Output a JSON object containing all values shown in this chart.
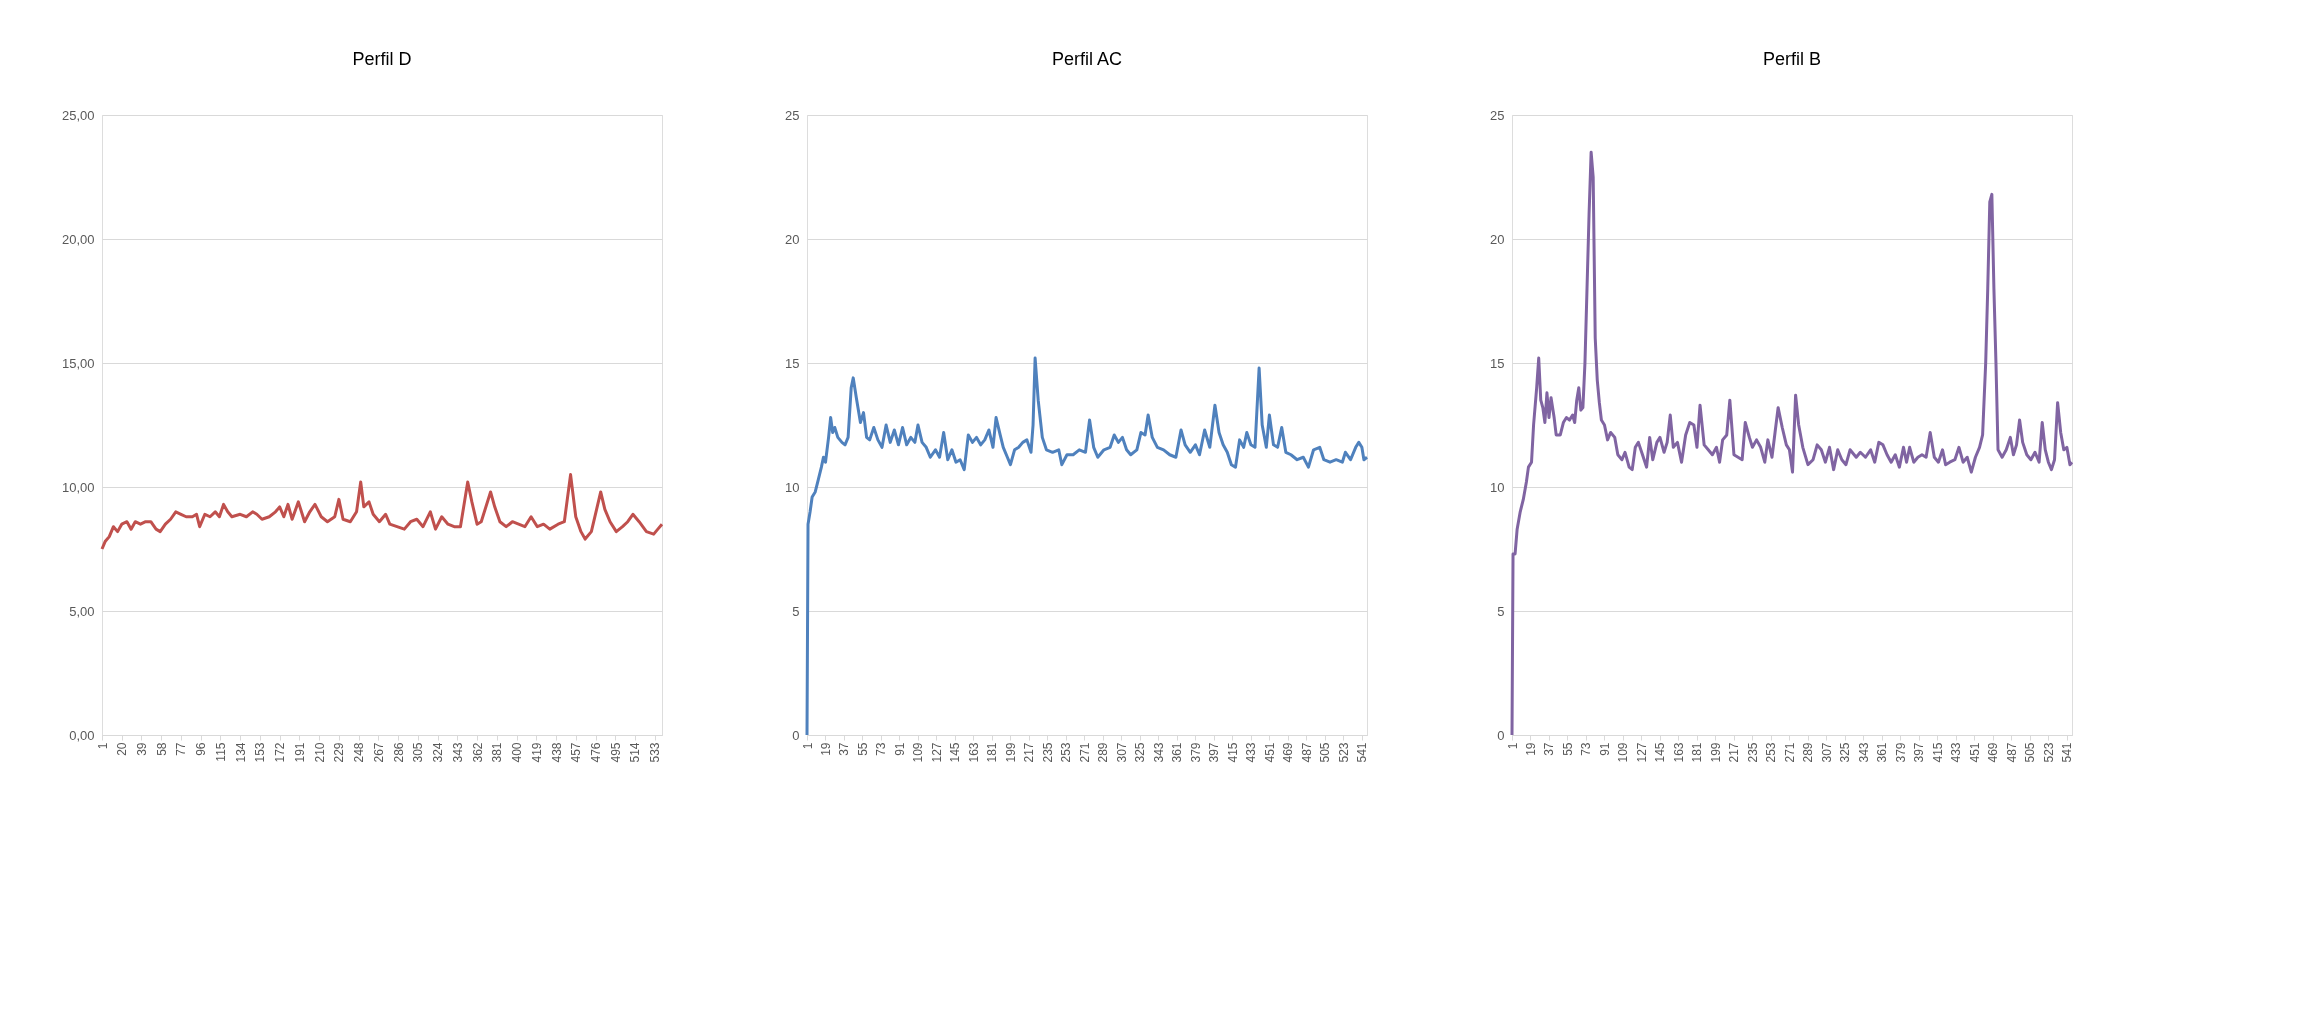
{
  "chart_data": [
    {
      "type": "line",
      "title": "Perfil D",
      "grid": "y",
      "marker": "none",
      "line_style": "solid",
      "xlim": [
        1,
        540
      ],
      "xticks": [
        1,
        20,
        39,
        58,
        77,
        96,
        115,
        134,
        153,
        172,
        191,
        210,
        229,
        248,
        267,
        286,
        305,
        324,
        343,
        362,
        381,
        400,
        419,
        438,
        457,
        476,
        495,
        514,
        533
      ],
      "ylim": [
        0,
        25
      ],
      "yticks": [
        {
          "value": 0,
          "label": "0,00"
        },
        {
          "value": 5,
          "label": "5,00"
        },
        {
          "value": 10,
          "label": "10,00"
        },
        {
          "value": 15,
          "label": "15,00"
        },
        {
          "value": 20,
          "label": "20,00"
        },
        {
          "value": 25,
          "label": "25,00"
        }
      ],
      "series": [
        {
          "color": "#c0504d",
          "x": [
            1,
            4,
            8,
            12,
            16,
            20,
            25,
            29,
            33,
            38,
            43,
            48,
            53,
            57,
            62,
            67,
            72,
            77,
            82,
            88,
            92,
            95,
            100,
            105,
            110,
            114,
            118,
            122,
            126,
            134,
            140,
            146,
            150,
            155,
            162,
            168,
            172,
            176,
            180,
            184,
            190,
            196,
            201,
            206,
            212,
            218,
            225,
            229,
            233,
            240,
            246,
            250,
            253,
            258,
            262,
            268,
            274,
            278,
            285,
            292,
            298,
            304,
            310,
            317,
            322,
            328,
            334,
            340,
            346,
            353,
            357,
            362,
            366,
            375,
            379,
            384,
            390,
            396,
            402,
            408,
            414,
            420,
            426,
            432,
            440,
            446,
            452,
            457,
            462,
            466,
            472,
            481,
            485,
            490,
            496,
            502,
            507,
            512,
            518,
            525,
            532,
            536,
            540
          ],
          "values": [
            7.5,
            7.8,
            8.0,
            8.4,
            8.2,
            8.5,
            8.6,
            8.3,
            8.6,
            8.5,
            8.6,
            8.6,
            8.3,
            8.2,
            8.5,
            8.7,
            9.0,
            8.9,
            8.8,
            8.8,
            8.9,
            8.4,
            8.9,
            8.8,
            9.0,
            8.8,
            9.3,
            9.0,
            8.8,
            8.9,
            8.8,
            9.0,
            8.9,
            8.7,
            8.8,
            9.0,
            9.2,
            8.8,
            9.3,
            8.7,
            9.4,
            8.6,
            9.0,
            9.3,
            8.8,
            8.6,
            8.8,
            9.5,
            8.7,
            8.6,
            9.0,
            10.2,
            9.2,
            9.4,
            8.9,
            8.6,
            8.9,
            8.5,
            8.4,
            8.3,
            8.6,
            8.7,
            8.4,
            9.0,
            8.3,
            8.8,
            8.5,
            8.4,
            8.4,
            10.2,
            9.4,
            8.5,
            8.6,
            9.8,
            9.2,
            8.6,
            8.4,
            8.6,
            8.5,
            8.4,
            8.8,
            8.4,
            8.5,
            8.3,
            8.5,
            8.6,
            10.5,
            8.8,
            8.2,
            7.9,
            8.2,
            9.8,
            9.1,
            8.6,
            8.2,
            8.4,
            8.6,
            8.9,
            8.6,
            8.2,
            8.1,
            8.3,
            8.5
          ]
        }
      ]
    },
    {
      "type": "line",
      "title": "Perfil AC",
      "grid": "y",
      "marker": "none",
      "line_style": "solid",
      "xlim": [
        1,
        546
      ],
      "xticks": [
        1,
        19,
        37,
        55,
        73,
        91,
        109,
        127,
        145,
        163,
        181,
        199,
        217,
        235,
        253,
        271,
        289,
        307,
        325,
        343,
        361,
        379,
        397,
        415,
        433,
        451,
        469,
        487,
        505,
        523,
        541
      ],
      "ylim": [
        0,
        25
      ],
      "yticks": [
        0,
        5,
        10,
        15,
        20,
        25
      ],
      "series": [
        {
          "color": "#4f81bd",
          "x": [
            1,
            2,
            4,
            6,
            9,
            12,
            15,
            17,
            19,
            22,
            24,
            26,
            28,
            31,
            35,
            38,
            41,
            44,
            46,
            49,
            53,
            56,
            59,
            62,
            66,
            70,
            74,
            78,
            82,
            86,
            90,
            94,
            98,
            102,
            106,
            109,
            113,
            117,
            121,
            126,
            130,
            134,
            138,
            142,
            146,
            150,
            154,
            158,
            162,
            166,
            170,
            174,
            178,
            182,
            185,
            189,
            192,
            196,
            199,
            203,
            207,
            211,
            215,
            219,
            221,
            223,
            226,
            230,
            234,
            240,
            246,
            249,
            254,
            260,
            266,
            272,
            276,
            280,
            284,
            290,
            296,
            300,
            304,
            308,
            312,
            316,
            322,
            326,
            330,
            333,
            337,
            342,
            348,
            354,
            360,
            365,
            369,
            374,
            379,
            383,
            388,
            393,
            398,
            402,
            406,
            410,
            414,
            418,
            422,
            426,
            429,
            433,
            437,
            441,
            444,
            448,
            451,
            455,
            459,
            463,
            467,
            472,
            478,
            484,
            489,
            494,
            500,
            504,
            510,
            516,
            522,
            525,
            530,
            535,
            538,
            541,
            543,
            546
          ],
          "values": [
            0,
            8.5,
            9.0,
            9.6,
            9.8,
            10.3,
            10.8,
            11.2,
            11.0,
            12.0,
            12.8,
            12.2,
            12.4,
            12.0,
            11.8,
            11.7,
            12.0,
            14.0,
            14.4,
            13.6,
            12.6,
            13.0,
            12.0,
            11.9,
            12.4,
            11.9,
            11.6,
            12.5,
            11.8,
            12.3,
            11.7,
            12.4,
            11.7,
            12.0,
            11.8,
            12.5,
            11.8,
            11.6,
            11.2,
            11.5,
            11.2,
            12.2,
            11.1,
            11.5,
            11.0,
            11.1,
            10.7,
            12.1,
            11.8,
            12.0,
            11.7,
            11.9,
            12.3,
            11.6,
            12.8,
            12.1,
            11.6,
            11.2,
            10.9,
            11.5,
            11.6,
            11.8,
            11.9,
            11.4,
            12.5,
            15.2,
            13.5,
            12.0,
            11.5,
            11.4,
            11.5,
            10.9,
            11.3,
            11.3,
            11.5,
            11.4,
            12.7,
            11.6,
            11.2,
            11.5,
            11.6,
            12.1,
            11.8,
            12.0,
            11.5,
            11.3,
            11.5,
            12.2,
            12.1,
            12.9,
            12.0,
            11.6,
            11.5,
            11.3,
            11.2,
            12.3,
            11.7,
            11.4,
            11.7,
            11.3,
            12.3,
            11.6,
            13.3,
            12.2,
            11.7,
            11.4,
            10.9,
            10.8,
            11.9,
            11.6,
            12.2,
            11.7,
            11.6,
            14.8,
            12.5,
            11.6,
            12.9,
            11.7,
            11.6,
            12.4,
            11.4,
            11.3,
            11.1,
            11.2,
            10.8,
            11.5,
            11.6,
            11.1,
            11.0,
            11.1,
            11.0,
            11.4,
            11.1,
            11.6,
            11.8,
            11.6,
            11.1,
            11.2
          ]
        }
      ]
    },
    {
      "type": "line",
      "title": "Perfil B",
      "grid": "y",
      "marker": "none",
      "line_style": "solid",
      "xlim": [
        1,
        546
      ],
      "xticks": [
        1,
        19,
        37,
        55,
        73,
        91,
        109,
        127,
        145,
        163,
        181,
        199,
        217,
        235,
        253,
        271,
        289,
        307,
        325,
        343,
        361,
        379,
        397,
        415,
        433,
        451,
        469,
        487,
        505,
        523,
        541
      ],
      "ylim": [
        0,
        25
      ],
      "yticks": [
        0,
        5,
        10,
        15,
        20,
        25
      ],
      "series": [
        {
          "color": "#8064a2",
          "x": [
            1,
            2,
            4,
            6,
            9,
            12,
            15,
            17,
            20,
            22,
            25,
            27,
            29,
            31,
            33,
            35,
            37,
            39,
            42,
            44,
            48,
            51,
            54,
            57,
            60,
            62,
            64,
            66,
            68,
            70,
            72,
            74,
            76,
            78,
            80,
            82,
            84,
            86,
            88,
            91,
            94,
            97,
            101,
            104,
            108,
            111,
            115,
            118,
            121,
            124,
            128,
            132,
            135,
            138,
            142,
            145,
            149,
            152,
            155,
            158,
            162,
            166,
            170,
            174,
            178,
            181,
            184,
            188,
            192,
            196,
            200,
            203,
            206,
            210,
            213,
            217,
            221,
            225,
            228,
            232,
            235,
            239,
            243,
            247,
            250,
            254,
            257,
            260,
            264,
            268,
            271,
            274,
            277,
            280,
            284,
            289,
            294,
            298,
            302,
            306,
            310,
            314,
            318,
            322,
            326,
            330,
            336,
            340,
            345,
            350,
            354,
            358,
            362,
            366,
            370,
            374,
            378,
            382,
            385,
            388,
            392,
            396,
            400,
            404,
            408,
            412,
            416,
            420,
            423,
            427,
            432,
            436,
            440,
            444,
            448,
            452,
            456,
            459,
            462,
            464,
            466,
            468,
            470,
            472,
            474,
            478,
            482,
            486,
            489,
            492,
            495,
            498,
            502,
            506,
            510,
            514,
            517,
            520,
            523,
            526,
            529,
            532,
            535,
            538,
            541,
            544,
            546
          ],
          "values": [
            0,
            7.3,
            7.3,
            8.3,
            9.0,
            9.5,
            10.2,
            10.8,
            11.0,
            12.5,
            14.0,
            15.2,
            13.5,
            13.2,
            12.6,
            13.8,
            12.8,
            13.6,
            12.8,
            12.1,
            12.1,
            12.6,
            12.8,
            12.7,
            12.9,
            12.6,
            13.5,
            14.0,
            13.1,
            13.2,
            15.0,
            18.0,
            21.0,
            23.5,
            22.5,
            16.0,
            14.3,
            13.4,
            12.7,
            12.5,
            11.9,
            12.2,
            12.0,
            11.3,
            11.1,
            11.4,
            10.8,
            10.7,
            11.6,
            11.8,
            11.3,
            10.8,
            12.0,
            11.1,
            11.8,
            12.0,
            11.4,
            11.8,
            12.9,
            11.6,
            11.8,
            11.0,
            12.1,
            12.6,
            12.5,
            11.6,
            13.3,
            11.7,
            11.5,
            11.3,
            11.6,
            11.0,
            11.9,
            12.1,
            13.5,
            11.3,
            11.2,
            11.1,
            12.6,
            12.0,
            11.6,
            11.9,
            11.6,
            11.0,
            11.9,
            11.2,
            12.2,
            13.2,
            12.4,
            11.7,
            11.5,
            10.6,
            13.7,
            12.5,
            11.6,
            10.9,
            11.1,
            11.7,
            11.5,
            11.0,
            11.6,
            10.7,
            11.5,
            11.1,
            10.9,
            11.5,
            11.2,
            11.4,
            11.2,
            11.5,
            11.0,
            11.8,
            11.7,
            11.3,
            11.0,
            11.3,
            10.8,
            11.6,
            11.0,
            11.6,
            11.0,
            11.2,
            11.3,
            11.2,
            12.2,
            11.2,
            11.0,
            11.5,
            10.9,
            11.0,
            11.1,
            11.6,
            11.0,
            11.2,
            10.6,
            11.2,
            11.6,
            12.1,
            15.0,
            18.0,
            21.5,
            21.8,
            18.0,
            15.0,
            11.5,
            11.2,
            11.5,
            12.0,
            11.3,
            11.7,
            12.7,
            11.8,
            11.3,
            11.1,
            11.4,
            11.0,
            12.6,
            11.5,
            11.0,
            10.7,
            11.1,
            13.4,
            12.2,
            11.5,
            11.6,
            10.9,
            11.0
          ]
        }
      ]
    }
  ]
}
